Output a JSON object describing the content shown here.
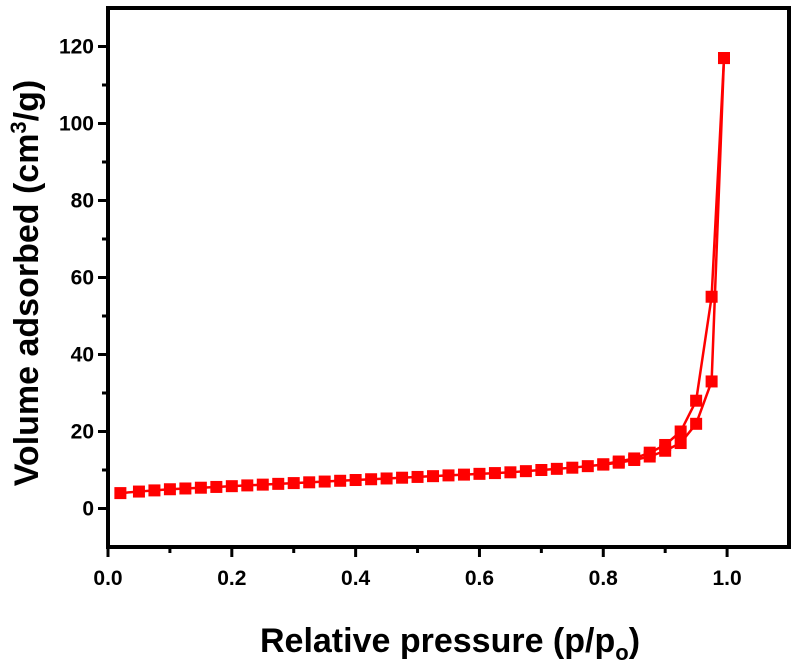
{
  "chart_data": {
    "type": "line",
    "title": "",
    "xlabel": "Relative pressure (p/p",
    "xlabel_sub": "o",
    "xlabel_close": ")",
    "ylabel": "Volume adsorbed (cm",
    "ylabel_sup": "3",
    "ylabel_close": "/g)",
    "xlim": [
      0.0,
      1.1
    ],
    "ylim": [
      -10,
      130
    ],
    "xticks": [
      0.0,
      0.2,
      0.4,
      0.6,
      0.8,
      1.0
    ],
    "xtick_labels": [
      "0.0",
      "0.2",
      "0.4",
      "0.6",
      "0.8",
      "1.0"
    ],
    "yticks": [
      0,
      20,
      40,
      60,
      80,
      100,
      120
    ],
    "ytick_labels": [
      "0",
      "20",
      "40",
      "60",
      "80",
      "100",
      "120"
    ],
    "grid": false,
    "legend": false,
    "marker": "square",
    "color": "#ff0000",
    "series": [
      {
        "x": [
          0.02,
          0.05,
          0.075,
          0.1,
          0.125,
          0.15,
          0.175,
          0.2,
          0.225,
          0.25,
          0.275,
          0.3,
          0.325,
          0.35,
          0.375,
          0.4,
          0.425,
          0.45,
          0.475,
          0.5,
          0.525,
          0.55,
          0.575,
          0.6,
          0.625,
          0.65,
          0.675,
          0.7,
          0.725,
          0.75,
          0.775,
          0.8,
          0.825,
          0.85,
          0.875,
          0.9,
          0.925,
          0.95,
          0.975,
          0.995
        ],
        "values": [
          4.0,
          4.4,
          4.7,
          5.0,
          5.2,
          5.4,
          5.6,
          5.8,
          6.0,
          6.2,
          6.4,
          6.6,
          6.8,
          7.0,
          7.2,
          7.4,
          7.6,
          7.8,
          8.0,
          8.2,
          8.4,
          8.6,
          8.8,
          9.0,
          9.2,
          9.4,
          9.7,
          10.0,
          10.3,
          10.6,
          11.0,
          11.4,
          11.9,
          12.6,
          13.5,
          15.0,
          17.0,
          22.0,
          33.0,
          117.0
        ]
      },
      {
        "x": [
          0.995,
          0.975,
          0.95,
          0.925,
          0.9,
          0.875,
          0.85,
          0.825,
          0.8
        ],
        "values": [
          117.0,
          55.0,
          28.0,
          20.0,
          16.5,
          14.5,
          13.0,
          12.2,
          11.5
        ]
      }
    ]
  }
}
